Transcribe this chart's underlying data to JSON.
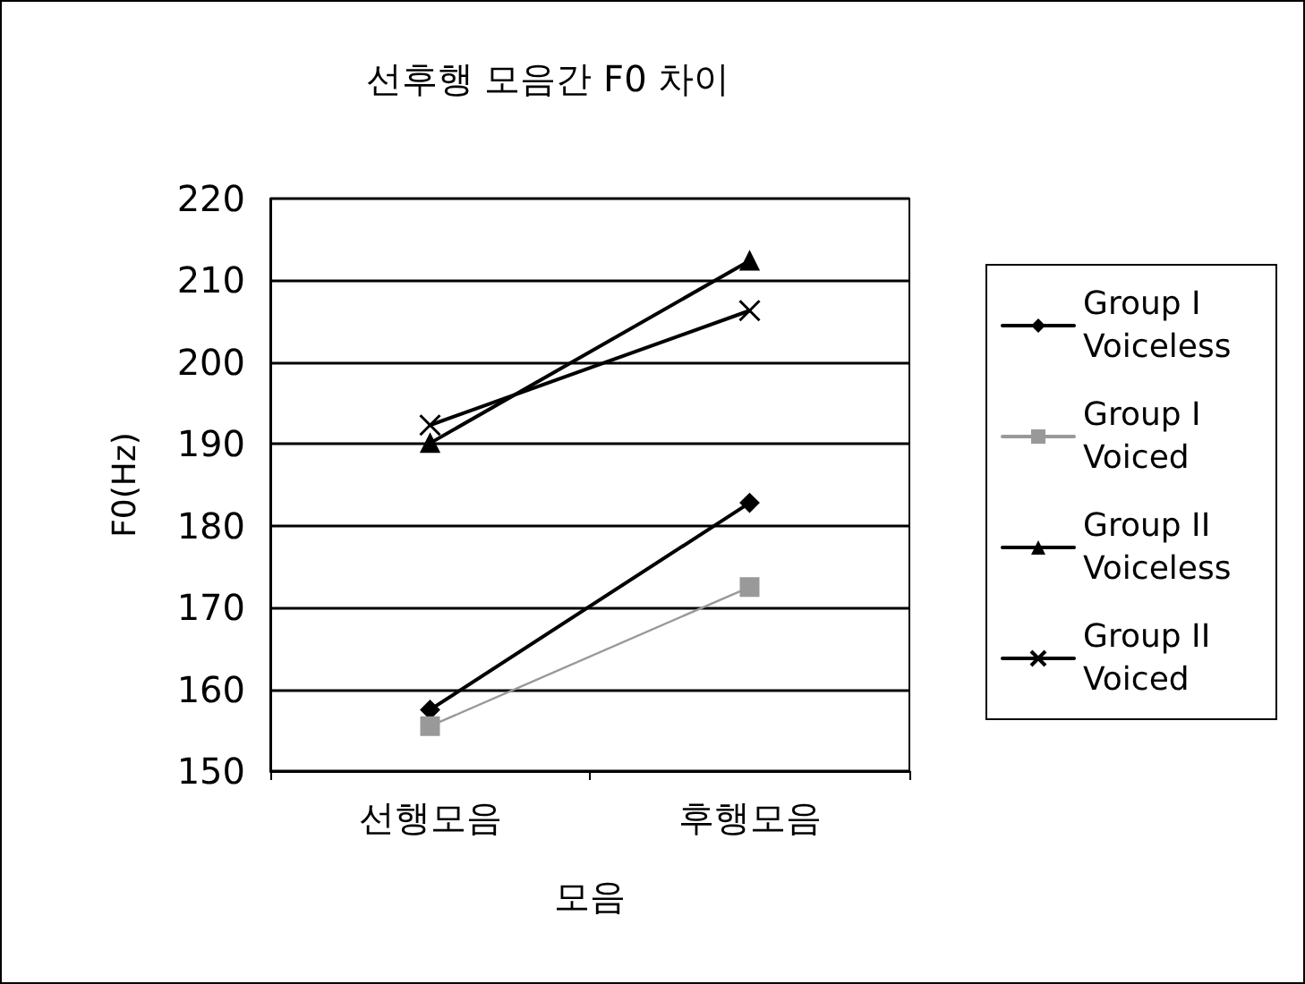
{
  "chart_data": {
    "type": "line",
    "title": "선후행 모음간 F0 차이",
    "xlabel": "모음",
    "ylabel": "F0(Hz)",
    "categories": [
      "선행모음",
      "후행모음"
    ],
    "series": [
      {
        "name": "Group I Voiceless",
        "color": "#000000",
        "marker": "diamond",
        "values": [
          157.5,
          182.8
        ]
      },
      {
        "name": "Group I Voiced",
        "color": "#999999",
        "marker": "square",
        "values": [
          155.5,
          172.5
        ]
      },
      {
        "name": "Group II Voiceless",
        "color": "#000000",
        "marker": "triangle",
        "values": [
          190.1,
          212.4
        ]
      },
      {
        "name": "Group II Voiced",
        "color": "#000000",
        "marker": "cross",
        "values": [
          192.3,
          206.3
        ]
      }
    ],
    "ylim": [
      150,
      220
    ],
    "yticks": [
      150,
      160,
      170,
      180,
      190,
      200,
      210,
      220
    ],
    "grid": "y",
    "legend": "right"
  }
}
